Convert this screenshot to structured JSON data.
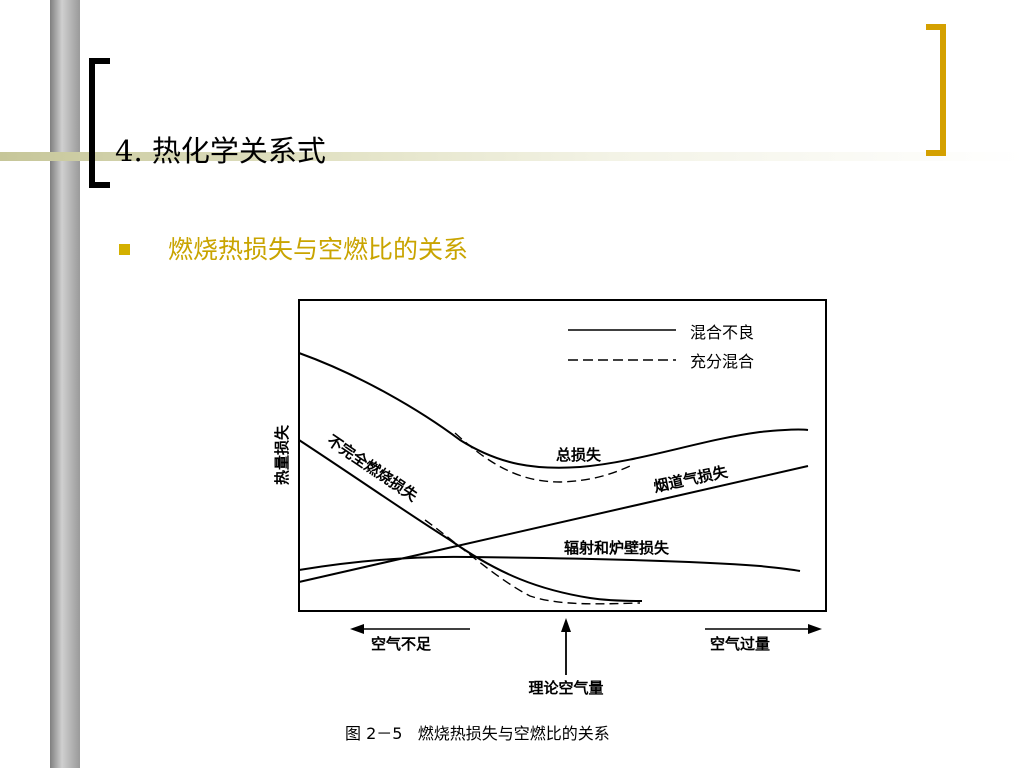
{
  "slide": {
    "title": "4. 热化学关系式",
    "bullet": "燃烧热损失与空燃比的关系"
  },
  "chart_data": {
    "type": "line",
    "ylabel": "热量损失",
    "legend": [
      {
        "style": "solid",
        "label": "混合不良"
      },
      {
        "style": "dashed",
        "label": "充分混合"
      }
    ],
    "curve_labels": {
      "total": "总损失",
      "flue": "烟道气损失",
      "radiation": "辐射和炉壁损失",
      "incomplete": "不完全燃烧损失"
    },
    "arrows": {
      "left": "空气不足",
      "right": "空气过量",
      "theory": "理论空气量"
    },
    "caption": "图 2－5   燃烧热损失与空燃比的关系"
  },
  "colors": {
    "bullet": "#c9a400",
    "bar": "#9a9a9a",
    "rule": "#c6c699",
    "bracket": "#d4a000"
  }
}
